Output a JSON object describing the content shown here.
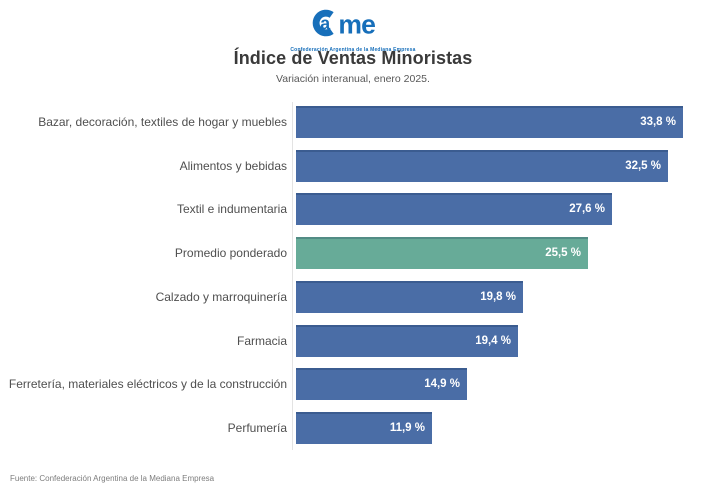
{
  "logo": {
    "name": "CAME",
    "letter_a": "a",
    "letters_me": "me",
    "tagline": "Confederación Argentina de la Mediana Empresa",
    "color": "#176fba"
  },
  "header": {
    "title": "Índice de Ventas Minoristas",
    "subtitle": "Variación interanual, enero 2025."
  },
  "chart_data": {
    "type": "bar",
    "orientation": "horizontal",
    "title": "Índice de Ventas Minoristas",
    "subtitle": "Variación interanual, enero 2025.",
    "unit": "%",
    "xlim": [
      0,
      35.5
    ],
    "grid": false,
    "legend": false,
    "categories": [
      "Bazar, decoración, textiles de hogar y muebles",
      "Alimentos y bebidas",
      "Textil e indumentaria",
      "Promedio ponderado",
      "Calzado y marroquinería",
      "Farmacia",
      "Ferretería, materiales eléctricos y de la construcción",
      "Perfumería"
    ],
    "values": [
      33.8,
      32.5,
      27.6,
      25.5,
      19.8,
      19.4,
      14.9,
      11.9
    ],
    "value_labels": [
      "33,8 %",
      "32,5 %",
      "27,6 %",
      "25,5 %",
      "19,8 %",
      "19,4 %",
      "14,9 %",
      "11,9 %"
    ],
    "highlight_index": 3,
    "bar_color": "#4a6da6",
    "highlight_color": "#67ab98",
    "value_text_color": "#ffffff",
    "label_color": "#4f4f4f"
  },
  "footer": {
    "source": "Fuente: Confederación Argentina de la Mediana Empresa"
  }
}
